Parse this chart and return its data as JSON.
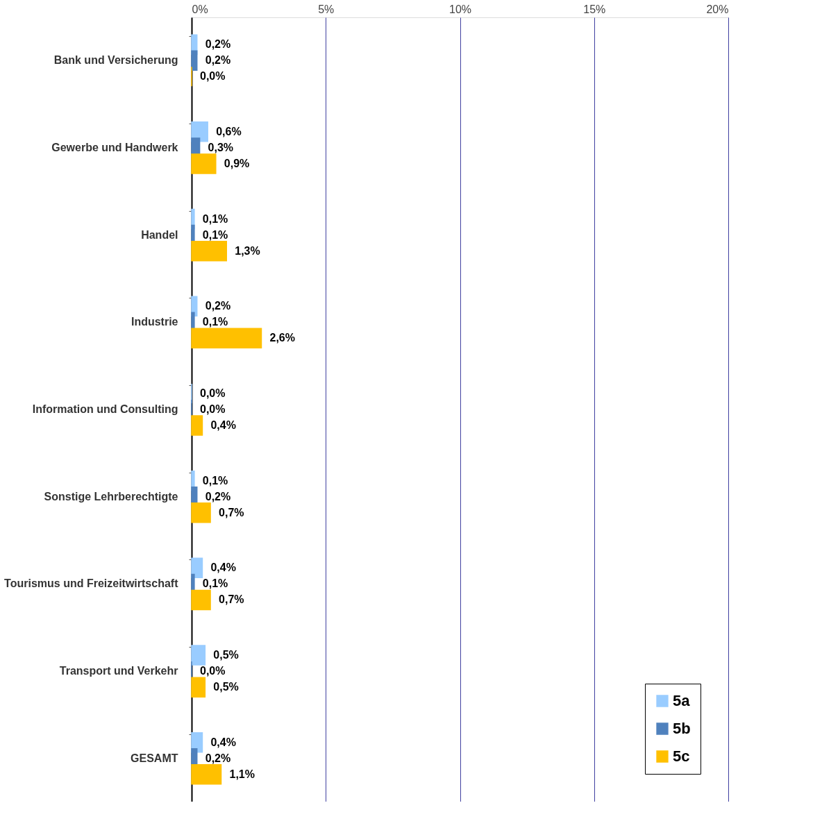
{
  "chart_data": {
    "type": "bar",
    "orientation": "horizontal",
    "categories": [
      "Bank und Versicherung",
      "Gewerbe und Handwerk",
      "Handel",
      "Industrie",
      "Information und Consulting",
      "Sonstige Lehrberechtigte",
      "Tourismus und Freizeitwirtschaft",
      "Transport und Verkehr",
      "GESAMT"
    ],
    "series": [
      {
        "name": "5a",
        "color": "#99ccff",
        "values": [
          0.2,
          0.6,
          0.1,
          0.2,
          0.0,
          0.1,
          0.4,
          0.5,
          0.4
        ],
        "value_labels": [
          "0,2%",
          "0,6%",
          "0,1%",
          "0,2%",
          "0,0%",
          "0,1%",
          "0,4%",
          "0,5%",
          "0,4%"
        ]
      },
      {
        "name": "5b",
        "color": "#4f81bd",
        "values": [
          0.2,
          0.3,
          0.1,
          0.1,
          0.0,
          0.2,
          0.1,
          0.0,
          0.2
        ],
        "value_labels": [
          "0,2%",
          "0,3%",
          "0,1%",
          "0,1%",
          "0,0%",
          "0,2%",
          "0,1%",
          "0,0%",
          "0,2%"
        ]
      },
      {
        "name": "5c",
        "color": "#ffc000",
        "values": [
          0.0,
          0.9,
          1.3,
          2.6,
          0.4,
          0.7,
          0.7,
          0.5,
          1.1
        ],
        "value_labels": [
          "0,0%",
          "0,9%",
          "1,3%",
          "2,6%",
          "0,4%",
          "0,7%",
          "0,7%",
          "0,5%",
          "1,1%"
        ]
      }
    ],
    "xlim": [
      0,
      20
    ],
    "xticks": [
      {
        "value": 0,
        "label": "0%"
      },
      {
        "value": 5,
        "label": "5%"
      },
      {
        "value": 10,
        "label": "10%"
      },
      {
        "value": 15,
        "label": "15%"
      },
      {
        "value": 20,
        "label": "20%"
      }
    ],
    "grid": "x",
    "legend": "bottom right"
  }
}
